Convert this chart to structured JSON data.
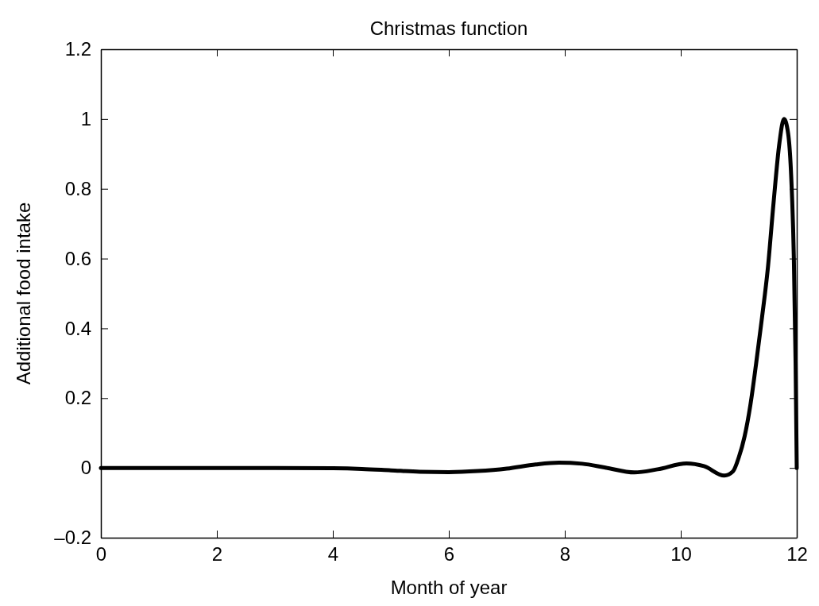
{
  "chart_data": {
    "type": "line",
    "title": "Christmas function",
    "xlabel": "Month of year",
    "ylabel": "Additional food intake",
    "x": [
      0,
      1,
      2,
      3,
      4,
      4.5,
      5,
      5.5,
      6,
      6.5,
      7,
      7.5,
      7.9,
      8.3,
      8.7,
      9.2,
      9.6,
      10.1,
      10.4,
      10.75,
      10.9,
      11.0,
      11.1,
      11.2,
      11.3,
      11.4,
      11.5,
      11.6,
      11.7,
      11.78,
      11.85,
      11.9,
      11.95,
      11.98,
      12
    ],
    "series": [
      {
        "color": "#000000",
        "values": [
          0,
          0,
          0,
          0,
          -0.001,
          -0.003,
          -0.007,
          -0.011,
          -0.012,
          -0.009,
          -0.002,
          0.01,
          0.015,
          0.012,
          0.001,
          -0.013,
          -0.004,
          0.013,
          0.005,
          -0.022,
          -0.01,
          0.03,
          0.09,
          0.18,
          0.3,
          0.43,
          0.57,
          0.76,
          0.93,
          1.0,
          0.96,
          0.85,
          0.6,
          0.3,
          0
        ]
      }
    ],
    "xlim": [
      0,
      12
    ],
    "xticks": [
      0,
      2,
      4,
      6,
      8,
      10,
      12
    ],
    "ylim": [
      -0.2,
      1.2
    ],
    "yticks": [
      {
        "value": -0.2,
        "label": "–0.2"
      },
      0,
      0.2,
      0.4,
      0.6,
      0.8,
      1,
      1.2
    ],
    "grid": false,
    "marker": "none",
    "line_style": "solid"
  }
}
